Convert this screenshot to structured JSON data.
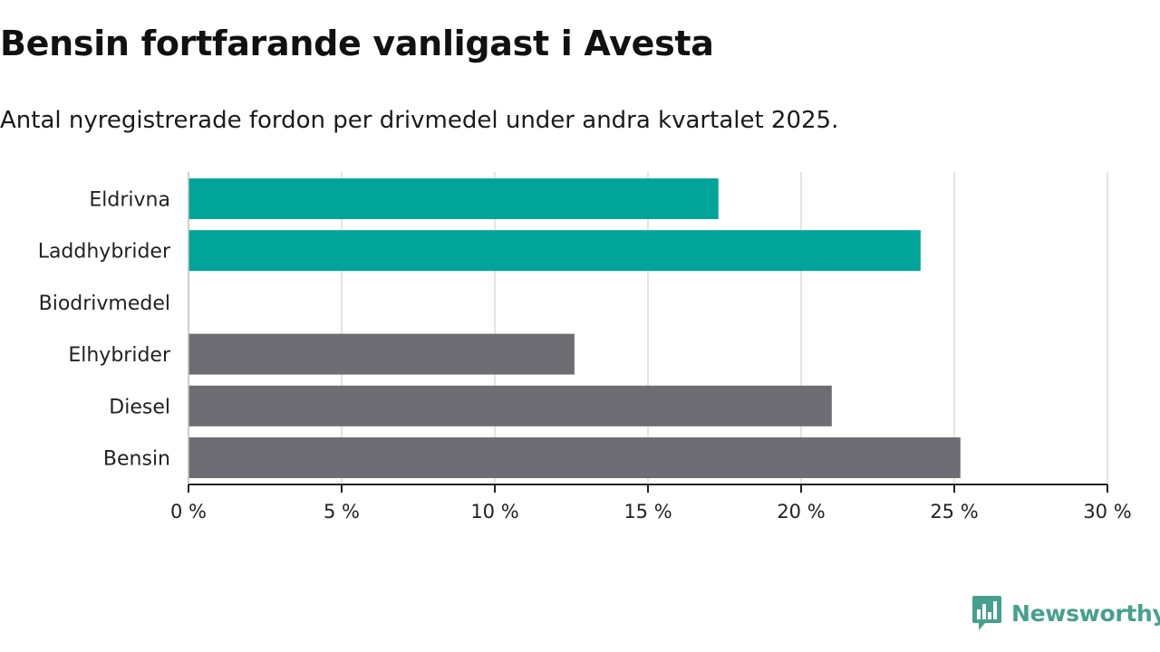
{
  "header": {
    "title": "Bensin fortfarande vanligast i Avesta",
    "subtitle": "Antal nyregistrerade fordon per drivmedel under andra kvartalet 2025."
  },
  "chart_data": {
    "type": "bar",
    "orientation": "horizontal",
    "categories": [
      "Eldrivna",
      "Laddhybrider",
      "Biodrivmedel",
      "Elhybrider",
      "Diesel",
      "Bensin"
    ],
    "values": [
      17.3,
      23.9,
      0,
      12.6,
      21.0,
      25.2
    ],
    "unit": "%",
    "bar_colors": [
      "#00a499",
      "#00a499",
      "#00a499",
      "#6e6d74",
      "#6e6d74",
      "#6e6d74"
    ],
    "xlim": [
      0,
      30
    ],
    "xticks": [
      0,
      5,
      10,
      15,
      20,
      25,
      30
    ],
    "xtick_labels": [
      "0 %",
      "5 %",
      "10 %",
      "15 %",
      "20 %",
      "25 %",
      "30 %"
    ],
    "grid": "vertical"
  },
  "branding": {
    "name": "Newsworthy",
    "color": "#46a08e"
  }
}
